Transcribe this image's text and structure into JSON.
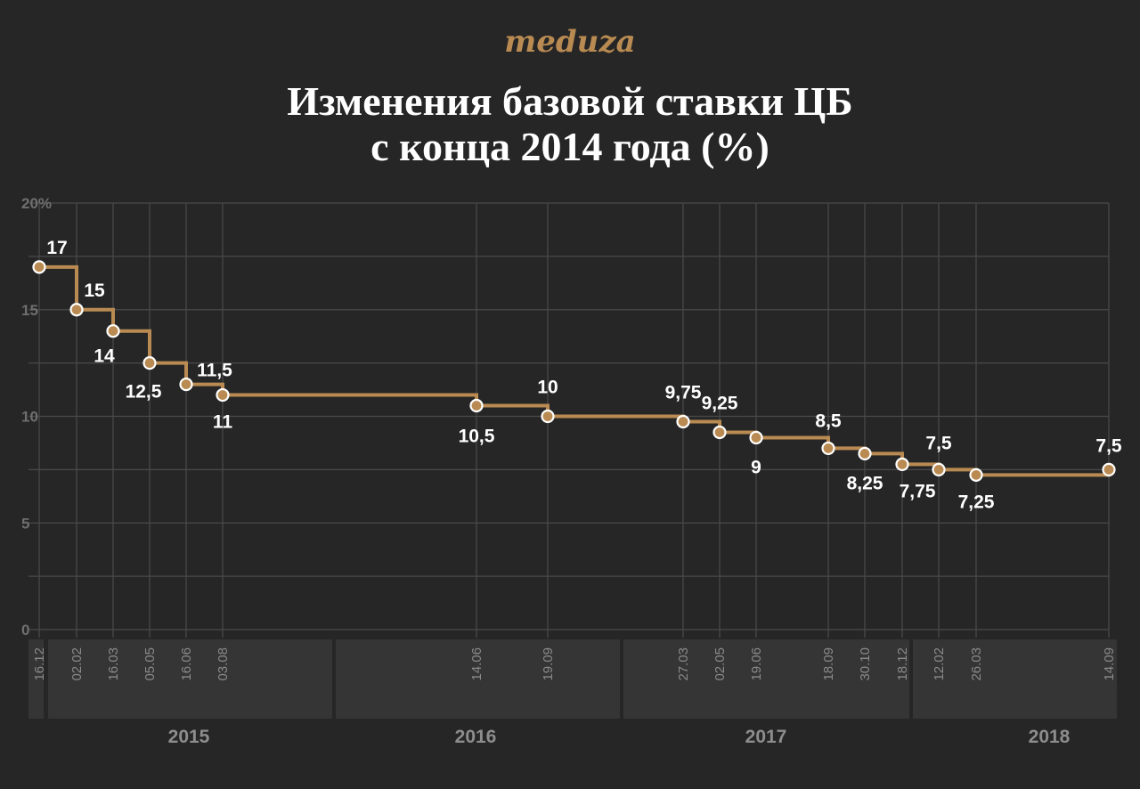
{
  "brand": "meduza",
  "title_line1": "Изменения базовой ставки ЦБ",
  "title_line2": "с конца 2014 года (%)",
  "colors": {
    "background": "#262626",
    "line": "#b98b52",
    "grid": "#4a4a4a",
    "band": "#353535",
    "text": "#ffffff"
  },
  "chart_data": {
    "type": "line",
    "step": true,
    "title": "Изменения базовой ставки ЦБ с конца 2014 года (%)",
    "yticks": [
      "20%",
      "15",
      "10",
      "5",
      "0"
    ],
    "ylim": [
      0,
      20
    ],
    "grid": true,
    "points": [
      {
        "date": "16.12",
        "value": 17,
        "label": "17"
      },
      {
        "date": "02.02",
        "value": 15,
        "label": "15"
      },
      {
        "date": "16.03",
        "value": 14,
        "label": "14"
      },
      {
        "date": "05.05",
        "value": 12.5,
        "label": "12,5"
      },
      {
        "date": "16.06",
        "value": 11.5,
        "label": "11,5"
      },
      {
        "date": "03.08",
        "value": 11,
        "label": "11"
      },
      {
        "date": "14.06",
        "value": 10.5,
        "label": "10,5"
      },
      {
        "date": "19.09",
        "value": 10,
        "label": "10"
      },
      {
        "date": "27.03",
        "value": 9.75,
        "label": "9,75"
      },
      {
        "date": "02.05",
        "value": 9.25,
        "label": "9,25"
      },
      {
        "date": "19.06",
        "value": 9,
        "label": "9"
      },
      {
        "date": "18.09",
        "value": 8.5,
        "label": "8,5"
      },
      {
        "date": "30.10",
        "value": 8.25,
        "label": "8,25"
      },
      {
        "date": "18.12",
        "value": 7.75,
        "label": "7,75"
      },
      {
        "date": "12.02",
        "value": 7.5,
        "label": "7,5"
      },
      {
        "date": "26.03",
        "value": 7.25,
        "label": "7,25"
      },
      {
        "date": "14.09",
        "value": 7.5,
        "label": "7,5"
      }
    ],
    "years": [
      "2015",
      "2016",
      "2017",
      "2018"
    ]
  }
}
